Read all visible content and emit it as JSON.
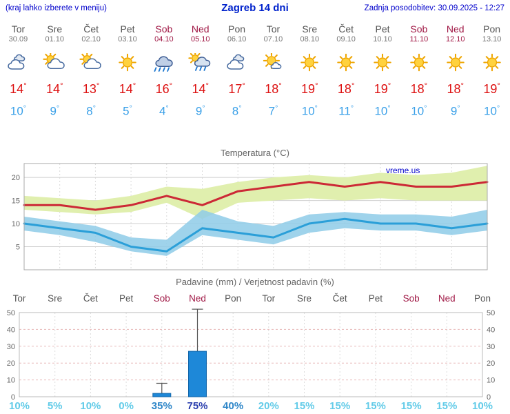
{
  "header": {
    "left_note": "(kraj lahko izberete v meniju)",
    "title": "Zagreb 14 dni",
    "updated": "Zadnja posodobitev: 30.09.2025 - 12:27"
  },
  "colors": {
    "link_blue": "#0000cc",
    "title_blue": "#0022cc",
    "day_name": "#555555",
    "day_date": "#777777",
    "weekend": "#a01845",
    "high_temp": "#dd1111",
    "low_temp": "#3aa0e8"
  },
  "days": [
    {
      "name": "Tor",
      "date": "30.09",
      "weekend": false,
      "icon": "cloudy",
      "high": 14,
      "low": 10
    },
    {
      "name": "Sre",
      "date": "01.10",
      "weekend": false,
      "icon": "partly-cloudy",
      "high": 14,
      "low": 9
    },
    {
      "name": "Čet",
      "date": "02.10",
      "weekend": false,
      "icon": "partly-cloudy",
      "high": 13,
      "low": 8
    },
    {
      "name": "Pet",
      "date": "03.10",
      "weekend": false,
      "icon": "sunny",
      "high": 14,
      "low": 5
    },
    {
      "name": "Sob",
      "date": "04.10",
      "weekend": true,
      "icon": "rain",
      "high": 16,
      "low": 4
    },
    {
      "name": "Ned",
      "date": "05.10",
      "weekend": true,
      "icon": "sun-rain",
      "high": 14,
      "low": 9
    },
    {
      "name": "Pon",
      "date": "06.10",
      "weekend": false,
      "icon": "cloudy",
      "high": 17,
      "low": 8
    },
    {
      "name": "Tor",
      "date": "07.10",
      "weekend": false,
      "icon": "mostly-sunny",
      "high": 18,
      "low": 7
    },
    {
      "name": "Sre",
      "date": "08.10",
      "weekend": false,
      "icon": "sunny",
      "high": 19,
      "low": 10
    },
    {
      "name": "Čet",
      "date": "09.10",
      "weekend": false,
      "icon": "sunny",
      "high": 18,
      "low": 11
    },
    {
      "name": "Pet",
      "date": "10.10",
      "weekend": false,
      "icon": "sunny",
      "high": 19,
      "low": 10
    },
    {
      "name": "Sob",
      "date": "11.10",
      "weekend": true,
      "icon": "sunny",
      "high": 18,
      "low": 10
    },
    {
      "name": "Ned",
      "date": "12.10",
      "weekend": true,
      "icon": "sunny",
      "high": 18,
      "low": 9
    },
    {
      "name": "Pon",
      "date": "13.10",
      "weekend": false,
      "icon": "sunny",
      "high": 19,
      "low": 10
    }
  ],
  "chart_data": [
    {
      "type": "line",
      "name": "temperature",
      "title": "Temperatura (°C)",
      "watermark": "vreme.us",
      "categories": [
        "Tor",
        "Sre",
        "Čet",
        "Pet",
        "Sob",
        "Ned",
        "Pon",
        "Tor",
        "Sre",
        "Čet",
        "Pet",
        "Sob",
        "Ned",
        "Pon"
      ],
      "ylim": [
        0,
        23
      ],
      "yticks": [
        5,
        10,
        15,
        20
      ],
      "grid": true,
      "series": [
        {
          "name": "max-temp",
          "color": "#cc2936",
          "values": [
            14,
            14,
            13,
            14,
            16,
            14,
            17,
            18,
            19,
            18,
            19,
            18,
            18,
            19
          ]
        },
        {
          "name": "min-temp",
          "color": "#2b9fd8",
          "values": [
            10,
            9,
            8,
            5,
            4,
            9,
            8,
            7,
            10,
            11,
            10,
            10,
            9,
            10
          ]
        }
      ],
      "bands": [
        {
          "name": "max-range",
          "color": "#e0efae",
          "high": [
            16,
            15.5,
            15,
            16,
            18,
            17.5,
            19,
            20,
            20.5,
            20,
            21,
            20.5,
            21,
            22.5
          ],
          "low": [
            13,
            12.5,
            12,
            12.5,
            14.5,
            11,
            14.5,
            15,
            15.5,
            15,
            15.5,
            15,
            15,
            15
          ]
        },
        {
          "name": "min-range",
          "color": "#8ecbe8",
          "high": [
            11.5,
            10.5,
            9.5,
            7,
            6.5,
            13,
            10.5,
            9.5,
            12,
            12.5,
            12,
            12,
            11.5,
            13
          ],
          "low": [
            8.5,
            7.5,
            6,
            4,
            3,
            7.5,
            6.5,
            5.5,
            8,
            9,
            8.5,
            8.5,
            7.5,
            8.5
          ]
        }
      ]
    },
    {
      "type": "bar",
      "name": "precipitation",
      "title": "Padavine (mm) / Verjetnost padavin (%)",
      "categories": [
        "Tor",
        "Sre",
        "Čet",
        "Pet",
        "Sob",
        "Ned",
        "Pon",
        "Tor",
        "Sre",
        "Čet",
        "Pet",
        "Sob",
        "Ned",
        "Pon"
      ],
      "weekend_indexes": [
        4,
        5,
        11,
        12
      ],
      "ylim": [
        0,
        50
      ],
      "yticks": [
        0,
        10,
        20,
        30,
        40,
        50
      ],
      "grid": true,
      "amounts_mm": [
        0,
        0,
        0,
        0,
        2,
        27,
        0,
        0,
        0,
        0,
        0,
        0,
        0,
        0
      ],
      "range_max_mm": [
        0,
        0,
        0,
        0,
        8,
        52,
        0,
        0,
        0,
        0,
        0,
        0,
        0,
        0
      ],
      "probabilities_pct": [
        10,
        5,
        10,
        0,
        35,
        75,
        40,
        20,
        15,
        15,
        15,
        15,
        15,
        10
      ],
      "bar_color": "#1e88d8",
      "bar_border": "#1266aa",
      "prob_colors": {
        "low": "#62cbe8",
        "mid": "#2e86c8",
        "high": "#2b3fae"
      }
    }
  ]
}
